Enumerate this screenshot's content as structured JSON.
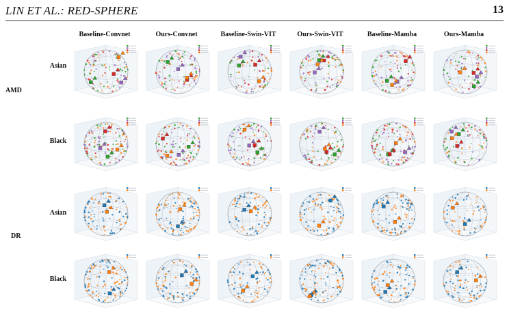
{
  "header": {
    "title": "LIN ET AL.: RED-SPHERE",
    "page_number": "13"
  },
  "columns": [
    "Baseline-Convnet",
    "Ours-Convnet",
    "Baseline-Swin-VIT",
    "Ours-Swin-VIT",
    "Baseline-Mamba",
    "Ours-Mamba"
  ],
  "groups": [
    {
      "label": "AMD",
      "rows": [
        "Asian",
        "Black"
      ]
    },
    {
      "label": "DR",
      "rows": [
        "Asian",
        "Black"
      ]
    }
  ],
  "colors": {
    "amd": [
      "#2ca02c",
      "#9467bd",
      "#d62728",
      "#ff7f0e"
    ],
    "dr": [
      "#1f77b4",
      "#ff7f0e"
    ],
    "sphere": "#9aa3ad",
    "panel": "#eef3f8"
  }
}
